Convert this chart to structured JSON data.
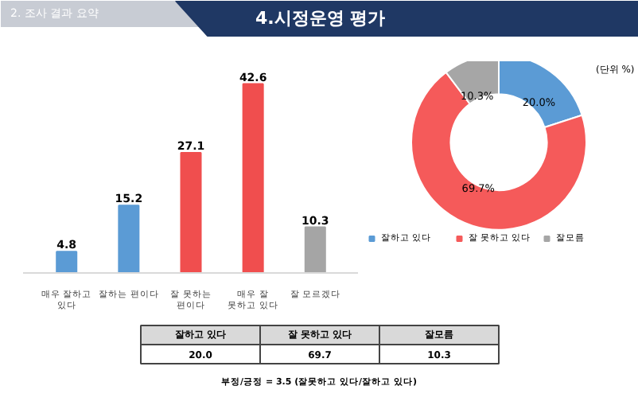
{
  "chart_data": [
    {
      "type": "bar",
      "title": "4.시정운영 평가",
      "subtitle": "2. 조사 결과 요약",
      "categories": [
        "매우 잘하고 있다",
        "잘하는 편이다",
        "잘 못하는 편이다",
        "매우 잘 못하고 있다",
        "잘 모르겠다"
      ],
      "values": [
        4.8,
        15.2,
        27.1,
        42.6,
        10.3
      ],
      "colors": [
        "#5b9bd5",
        "#5b9bd5",
        "#f04e4e",
        "#f04e4e",
        "#a5a5a5"
      ],
      "data_labels": true
    },
    {
      "type": "donut",
      "categories": [
        "잘하고 있다",
        "잘 못하고 있다",
        "잘모름"
      ],
      "values": [
        20.0,
        69.7,
        10.3
      ],
      "colors": [
        "#5b9bd5",
        "#f55a5a",
        "#a6a6a6"
      ],
      "value_labels": [
        "20.0%",
        "69.7%",
        "10.3%"
      ],
      "legend": "bottom",
      "annotations": [
        "(단위 %)"
      ]
    },
    {
      "type": "other",
      "categories": [
        "잘하고 있다",
        "잘 못하고 있다",
        "잘모름"
      ],
      "values": [
        20.0,
        69.7,
        10.3
      ],
      "value_labels": [
        "20.0",
        "69.7",
        "10.3"
      ],
      "annotations": [
        "부정/긍정 = 3.5 (잘못하고 있다/잘하고 있다)"
      ]
    }
  ]
}
